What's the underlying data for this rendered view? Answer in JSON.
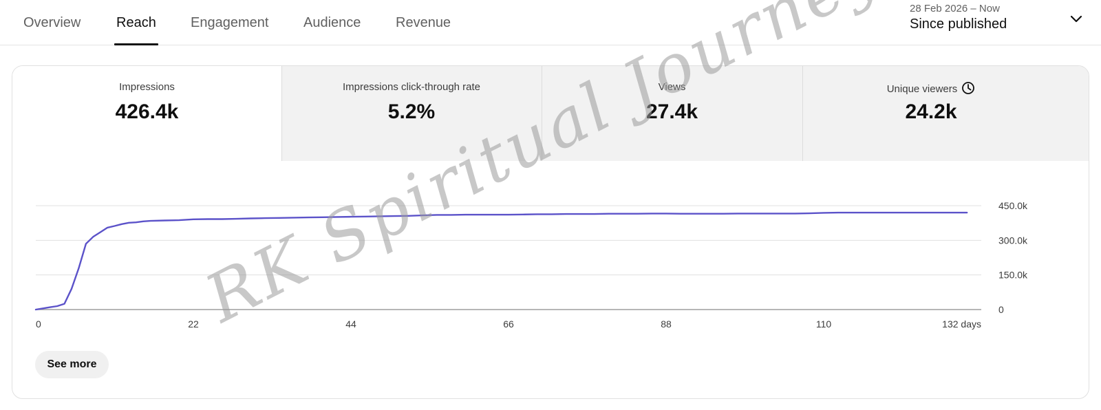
{
  "tabs": [
    {
      "label": "Overview",
      "active": false
    },
    {
      "label": "Reach",
      "active": true
    },
    {
      "label": "Engagement",
      "active": false
    },
    {
      "label": "Audience",
      "active": false
    },
    {
      "label": "Revenue",
      "active": false
    }
  ],
  "date_range": {
    "period": "28 Feb 2026 – Now",
    "label": "Since published"
  },
  "metrics": [
    {
      "label": "Impressions",
      "value": "426.4k",
      "active": true
    },
    {
      "label": "Impressions click-through rate",
      "value": "5.2%",
      "active": false
    },
    {
      "label": "Views",
      "value": "27.4k",
      "active": false
    },
    {
      "label": "Unique viewers",
      "value": "24.2k",
      "active": false,
      "icon": "clock-icon"
    }
  ],
  "chart_data": {
    "type": "line",
    "title": "",
    "xlabel": "",
    "ylabel": "",
    "x_tick_labels": [
      "0",
      "22",
      "44",
      "66",
      "88",
      "110",
      "132 days"
    ],
    "y_tick_labels": [
      "450.0k",
      "300.0k",
      "150.0k",
      "0"
    ],
    "x_ticks": [
      0,
      22,
      44,
      66,
      88,
      110,
      132
    ],
    "y_ticks": [
      450000,
      300000,
      150000,
      0
    ],
    "xlim": [
      0,
      132
    ],
    "ylim": [
      0,
      450000
    ],
    "grid": true,
    "axis_side": "right",
    "line_color": "#5b52c9",
    "series": [
      {
        "x": [
          0,
          1,
          2,
          3,
          4,
          5,
          6,
          7,
          8,
          9,
          10,
          11,
          12,
          13,
          14,
          15,
          16,
          18,
          20,
          22,
          24,
          26,
          28,
          30,
          32,
          34,
          36,
          38,
          40,
          42,
          44,
          46,
          48,
          50,
          52,
          54,
          56,
          58,
          60,
          62,
          64,
          66,
          68,
          70,
          72,
          74,
          76,
          78,
          80,
          82,
          84,
          86,
          88,
          90,
          92,
          94,
          96,
          98,
          100,
          102,
          104,
          106,
          108,
          110,
          112,
          114,
          116,
          118,
          120,
          122,
          124,
          126,
          128,
          130
        ],
        "y": [
          0,
          5000,
          10000,
          15000,
          25000,
          90000,
          180000,
          285000,
          315000,
          335000,
          355000,
          362000,
          370000,
          376000,
          378000,
          382000,
          384000,
          386000,
          387000,
          391000,
          392000,
          392000,
          393000,
          395000,
          396000,
          397000,
          398000,
          399000,
          400000,
          401000,
          402000,
          403000,
          404000,
          405000,
          406000,
          408000,
          410000,
          410000,
          411000,
          411000,
          411000,
          411000,
          412000,
          413000,
          413000,
          414000,
          414000,
          414000,
          415000,
          415000,
          415000,
          416000,
          416000,
          415000,
          415000,
          415000,
          415000,
          416000,
          416000,
          416000,
          416000,
          416000,
          417000,
          419000,
          420000,
          420000,
          420000,
          420000,
          420000,
          420000,
          420000,
          420000,
          420000,
          420000
        ]
      }
    ]
  },
  "see_more_label": "See more",
  "watermark": "RK Spiritual Journey Studio"
}
